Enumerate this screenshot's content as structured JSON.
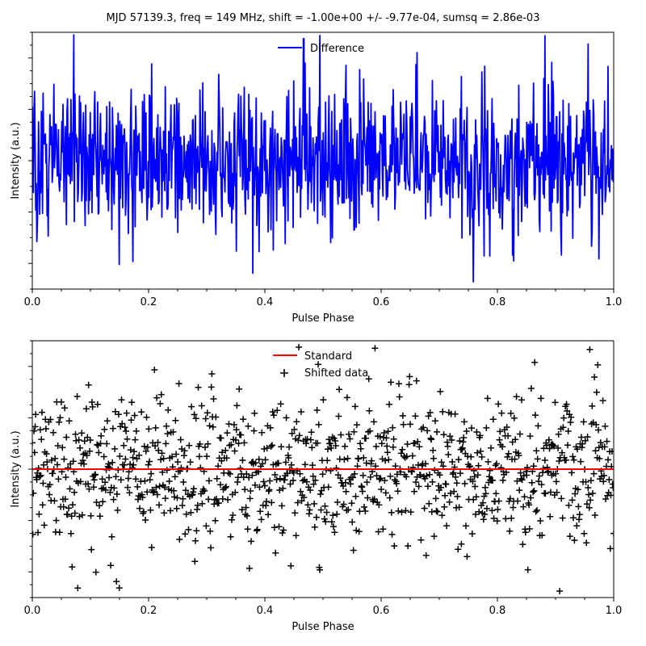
{
  "title": "MJD 57139.3, freq = 149 MHz, shift = -1.00e+00 +/- -9.77e-04, sumsq = 2.86e-03",
  "chart_data": [
    {
      "type": "line",
      "xlabel": "Pulse Phase",
      "ylabel": "Intensity (a.u.)",
      "xlim": [
        0,
        1
      ],
      "ylim": [
        -1.0,
        1.0
      ],
      "xticks": [
        "0.0",
        "0.2",
        "0.4",
        "0.6",
        "0.8",
        "1.0"
      ],
      "legend_position": "top-center",
      "noise_seed": 9,
      "noise_sigma": 0.3,
      "spike": {
        "x": 0.467,
        "y": 0.95
      },
      "series": [
        {
          "name": "Difference",
          "color": "#0000ff",
          "n_points": 1024,
          "description": "noise around zero, no visible pulse structure"
        }
      ]
    },
    {
      "type": "scatter",
      "xlabel": "Pulse Phase",
      "ylabel": "Intensity (a.u.)",
      "xlim": [
        0,
        1
      ],
      "ylim": [
        -1.0,
        1.0
      ],
      "xticks": [
        "0.0",
        "0.2",
        "0.4",
        "0.6",
        "0.8",
        "1.0"
      ],
      "legend_position": "top-center",
      "noise_seed": 21,
      "noise_sigma": 0.3,
      "baseline_y": 0.0,
      "series": [
        {
          "name": "Standard",
          "kind": "line",
          "color": "#ff0000",
          "y": 0.0
        },
        {
          "name": "Shifted data",
          "kind": "scatter",
          "marker": "+",
          "color": "#000000",
          "n_points": 1024
        }
      ]
    }
  ]
}
